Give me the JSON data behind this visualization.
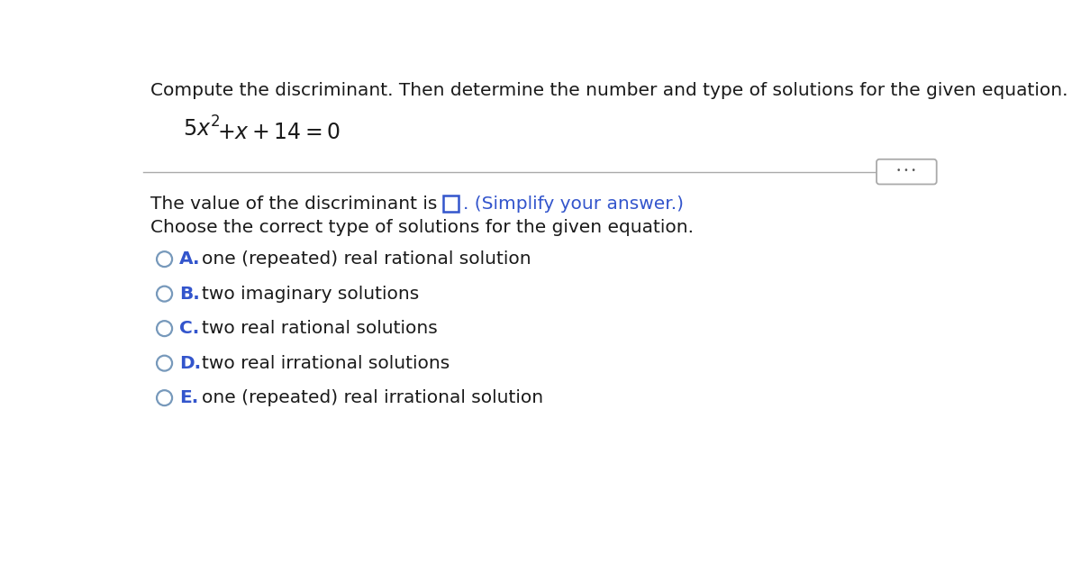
{
  "bg_color": "#ffffff",
  "text_color": "#1a1a1a",
  "blue_color": "#3355cc",
  "title": "Compute the discriminant. Then determine the number and type of solutions for the given equation.",
  "discriminant_text_before": "The value of the discriminant is",
  "discriminant_text_after": ". (Simplify your answer.)",
  "choose_text": "Choose the correct type of solutions for the given equation.",
  "options": [
    {
      "label": "A.",
      "text": "one (repeated) real rational solution"
    },
    {
      "label": "B.",
      "text": "two imaginary solutions"
    },
    {
      "label": "C.",
      "text": "two real rational solutions"
    },
    {
      "label": "D.",
      "text": "two real irrational solutions"
    },
    {
      "label": "E.",
      "text": "one (repeated) real irrational solution"
    }
  ],
  "title_fontsize": 14.5,
  "body_fontsize": 14.5,
  "equation_fontsize": 17,
  "option_label_color": "#3355cc",
  "circle_edge_color": "#7799bb",
  "box_edge_color": "#3355cc",
  "sep_line_color": "#aaaaaa",
  "btn_edge_color": "#aaaaaa",
  "btn_dot_color": "#555555"
}
